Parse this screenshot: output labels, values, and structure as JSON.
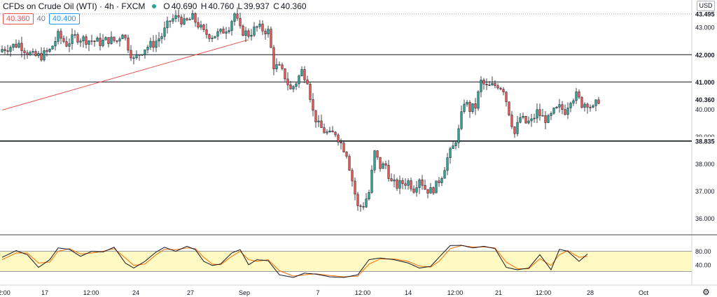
{
  "header": {
    "symbol": "CFDs on Crude Oil (WTI) · 4h · FXCM",
    "open_label": "O",
    "open": "40.690",
    "high_label": "H",
    "high": "40.760",
    "low_label": "L",
    "low": "39.937",
    "close_label": "C",
    "close": "40.360",
    "bid": "40.360",
    "spread": "40",
    "ask": "40.400"
  },
  "currency": "USD",
  "chart_data": {
    "type": "candlestick",
    "title": "CFDs on Crude Oil (WTI) · 4h · FXCM",
    "y_axis": {
      "range": [
        35.5,
        43.8
      ],
      "ticks": [
        36.0,
        37.0,
        38.0,
        39.0,
        40.0,
        43.0
      ],
      "tick_labels": [
        "36.000",
        "37.000",
        "38.000",
        "39.000",
        "40.000",
        "43.000"
      ]
    },
    "x_axis": {
      "labels": [
        "2:00",
        "17",
        "12:00",
        "24",
        "27",
        "Sep",
        "7",
        "12:00",
        "14",
        "12:00",
        "21",
        "12:00",
        "28",
        "Oct"
      ]
    },
    "horizontal_levels": [
      {
        "value": 43.495,
        "label": "43.495",
        "style": "dotted"
      },
      {
        "value": 42.0,
        "label": "42.000",
        "style": "solid"
      },
      {
        "value": 41.0,
        "label": "41.000",
        "style": "solid"
      },
      {
        "value": 38.835,
        "label": "38.835",
        "style": "solid-thick"
      }
    ],
    "last_price": {
      "value": 40.36,
      "label": "40.360"
    },
    "trend_line": {
      "from": {
        "bar": 0,
        "price": 39.97
      },
      "to": {
        "bar": 88,
        "price": 42.55
      },
      "color": "#ef5350"
    },
    "close_path": [
      [
        0,
        42.2
      ],
      [
        6,
        42.4
      ],
      [
        9,
        42.1
      ],
      [
        11,
        41.95
      ],
      [
        14,
        41.95
      ],
      [
        17,
        42.15
      ],
      [
        20,
        42.7
      ],
      [
        23,
        42.4
      ],
      [
        26,
        42.65
      ],
      [
        30,
        42.55
      ],
      [
        33,
        42.5
      ],
      [
        35,
        42.45
      ],
      [
        38,
        42.55
      ],
      [
        41,
        42.5
      ],
      [
        43,
        42.85
      ],
      [
        45,
        42.3
      ],
      [
        47,
        41.8
      ],
      [
        49,
        42.05
      ],
      [
        51,
        42.25
      ],
      [
        54,
        42.4
      ],
      [
        57,
        42.7
      ],
      [
        60,
        43.25
      ],
      [
        63,
        43.4
      ],
      [
        65,
        43.15
      ],
      [
        68,
        43.35
      ],
      [
        70,
        43.1
      ],
      [
        72,
        42.8
      ],
      [
        75,
        42.7
      ],
      [
        78,
        42.8
      ],
      [
        81,
        43.05
      ],
      [
        83,
        43.5
      ],
      [
        85,
        42.9
      ],
      [
        88,
        42.75
      ],
      [
        91,
        43.0
      ],
      [
        95,
        42.85
      ],
      [
        97,
        41.6
      ],
      [
        99,
        41.5
      ],
      [
        101,
        41.2
      ],
      [
        103,
        40.7
      ],
      [
        105,
        41.0
      ],
      [
        107,
        41.4
      ],
      [
        109,
        41.1
      ],
      [
        111,
        39.9
      ],
      [
        113,
        39.4
      ],
      [
        115,
        39.2
      ],
      [
        117,
        39.05
      ],
      [
        119,
        39.15
      ],
      [
        121,
        38.75
      ],
      [
        123,
        38.4
      ],
      [
        125,
        37.4
      ],
      [
        127,
        36.4
      ],
      [
        129,
        36.5
      ],
      [
        131,
        36.95
      ],
      [
        133,
        38.4
      ],
      [
        135,
        37.9
      ],
      [
        137,
        37.95
      ],
      [
        139,
        37.3
      ],
      [
        141,
        37.2
      ],
      [
        143,
        37.3
      ],
      [
        145,
        37.35
      ],
      [
        147,
        37.1
      ],
      [
        149,
        37.5
      ],
      [
        151,
        37.1
      ],
      [
        153,
        37.0
      ],
      [
        155,
        37.2
      ],
      [
        157,
        37.6
      ],
      [
        159,
        38.2
      ],
      [
        161,
        38.6
      ],
      [
        163,
        39.2
      ],
      [
        165,
        40.3
      ],
      [
        167,
        40.0
      ],
      [
        169,
        40.1
      ],
      [
        171,
        41.0
      ],
      [
        173,
        40.8
      ],
      [
        175,
        40.85
      ],
      [
        177,
        40.9
      ],
      [
        179,
        40.75
      ],
      [
        181,
        39.9
      ],
      [
        183,
        39.1
      ],
      [
        185,
        39.7
      ],
      [
        187,
        39.5
      ],
      [
        189,
        39.55
      ],
      [
        191,
        39.9
      ],
      [
        193,
        39.7
      ],
      [
        195,
        39.6
      ],
      [
        197,
        39.9
      ],
      [
        199,
        40.05
      ],
      [
        201,
        39.95
      ],
      [
        203,
        40.4
      ],
      [
        205,
        40.5
      ],
      [
        207,
        40.2
      ],
      [
        209,
        40.25
      ],
      [
        211,
        40.0
      ],
      [
        213,
        40.36
      ]
    ],
    "oscillator": {
      "levels": [
        {
          "value": 80,
          "label": "80.00"
        },
        {
          "value": 40,
          "label": "40.00"
        }
      ],
      "band": [
        20,
        80
      ],
      "range": [
        0,
        100
      ],
      "k_path": [
        [
          0,
          62
        ],
        [
          5,
          82
        ],
        [
          9,
          70
        ],
        [
          13,
          32
        ],
        [
          17,
          55
        ],
        [
          20,
          90
        ],
        [
          24,
          86
        ],
        [
          28,
          65
        ],
        [
          32,
          80
        ],
        [
          36,
          78
        ],
        [
          40,
          92
        ],
        [
          44,
          45
        ],
        [
          47,
          30
        ],
        [
          51,
          50
        ],
        [
          55,
          78
        ],
        [
          58,
          92
        ],
        [
          62,
          80
        ],
        [
          66,
          95
        ],
        [
          69,
          85
        ],
        [
          72,
          50
        ],
        [
          75,
          38
        ],
        [
          78,
          42
        ],
        [
          82,
          75
        ],
        [
          85,
          85
        ],
        [
          88,
          40
        ],
        [
          91,
          55
        ],
        [
          95,
          52
        ],
        [
          99,
          10
        ],
        [
          104,
          2
        ],
        [
          108,
          15
        ],
        [
          112,
          12
        ],
        [
          117,
          4
        ],
        [
          122,
          2
        ],
        [
          127,
          10
        ],
        [
          131,
          55
        ],
        [
          135,
          60
        ],
        [
          140,
          55
        ],
        [
          145,
          45
        ],
        [
          149,
          30
        ],
        [
          153,
          35
        ],
        [
          156,
          62
        ],
        [
          160,
          97
        ],
        [
          164,
          98
        ],
        [
          168,
          90
        ],
        [
          172,
          95
        ],
        [
          176,
          88
        ],
        [
          180,
          32
        ],
        [
          184,
          25
        ],
        [
          188,
          30
        ],
        [
          192,
          70
        ],
        [
          196,
          25
        ],
        [
          199,
          86
        ],
        [
          202,
          80
        ],
        [
          206,
          50
        ],
        [
          209,
          72
        ]
      ],
      "d_path": [
        [
          0,
          55
        ],
        [
          5,
          75
        ],
        [
          9,
          75
        ],
        [
          13,
          45
        ],
        [
          17,
          48
        ],
        [
          20,
          80
        ],
        [
          24,
          88
        ],
        [
          28,
          72
        ],
        [
          32,
          75
        ],
        [
          36,
          80
        ],
        [
          40,
          88
        ],
        [
          44,
          60
        ],
        [
          47,
          38
        ],
        [
          51,
          42
        ],
        [
          55,
          70
        ],
        [
          58,
          86
        ],
        [
          62,
          85
        ],
        [
          66,
          90
        ],
        [
          69,
          88
        ],
        [
          72,
          62
        ],
        [
          75,
          42
        ],
        [
          78,
          40
        ],
        [
          82,
          65
        ],
        [
          85,
          80
        ],
        [
          88,
          55
        ],
        [
          91,
          50
        ],
        [
          95,
          55
        ],
        [
          99,
          22
        ],
        [
          104,
          6
        ],
        [
          108,
          10
        ],
        [
          112,
          13
        ],
        [
          117,
          8
        ],
        [
          122,
          4
        ],
        [
          127,
          6
        ],
        [
          131,
          42
        ],
        [
          135,
          57
        ],
        [
          140,
          57
        ],
        [
          145,
          50
        ],
        [
          149,
          36
        ],
        [
          153,
          33
        ],
        [
          156,
          50
        ],
        [
          160,
          88
        ],
        [
          164,
          97
        ],
        [
          168,
          93
        ],
        [
          172,
          93
        ],
        [
          176,
          90
        ],
        [
          180,
          48
        ],
        [
          184,
          28
        ],
        [
          188,
          28
        ],
        [
          192,
          58
        ],
        [
          196,
          38
        ],
        [
          199,
          70
        ],
        [
          202,
          82
        ],
        [
          206,
          62
        ],
        [
          209,
          65
        ]
      ]
    }
  }
}
